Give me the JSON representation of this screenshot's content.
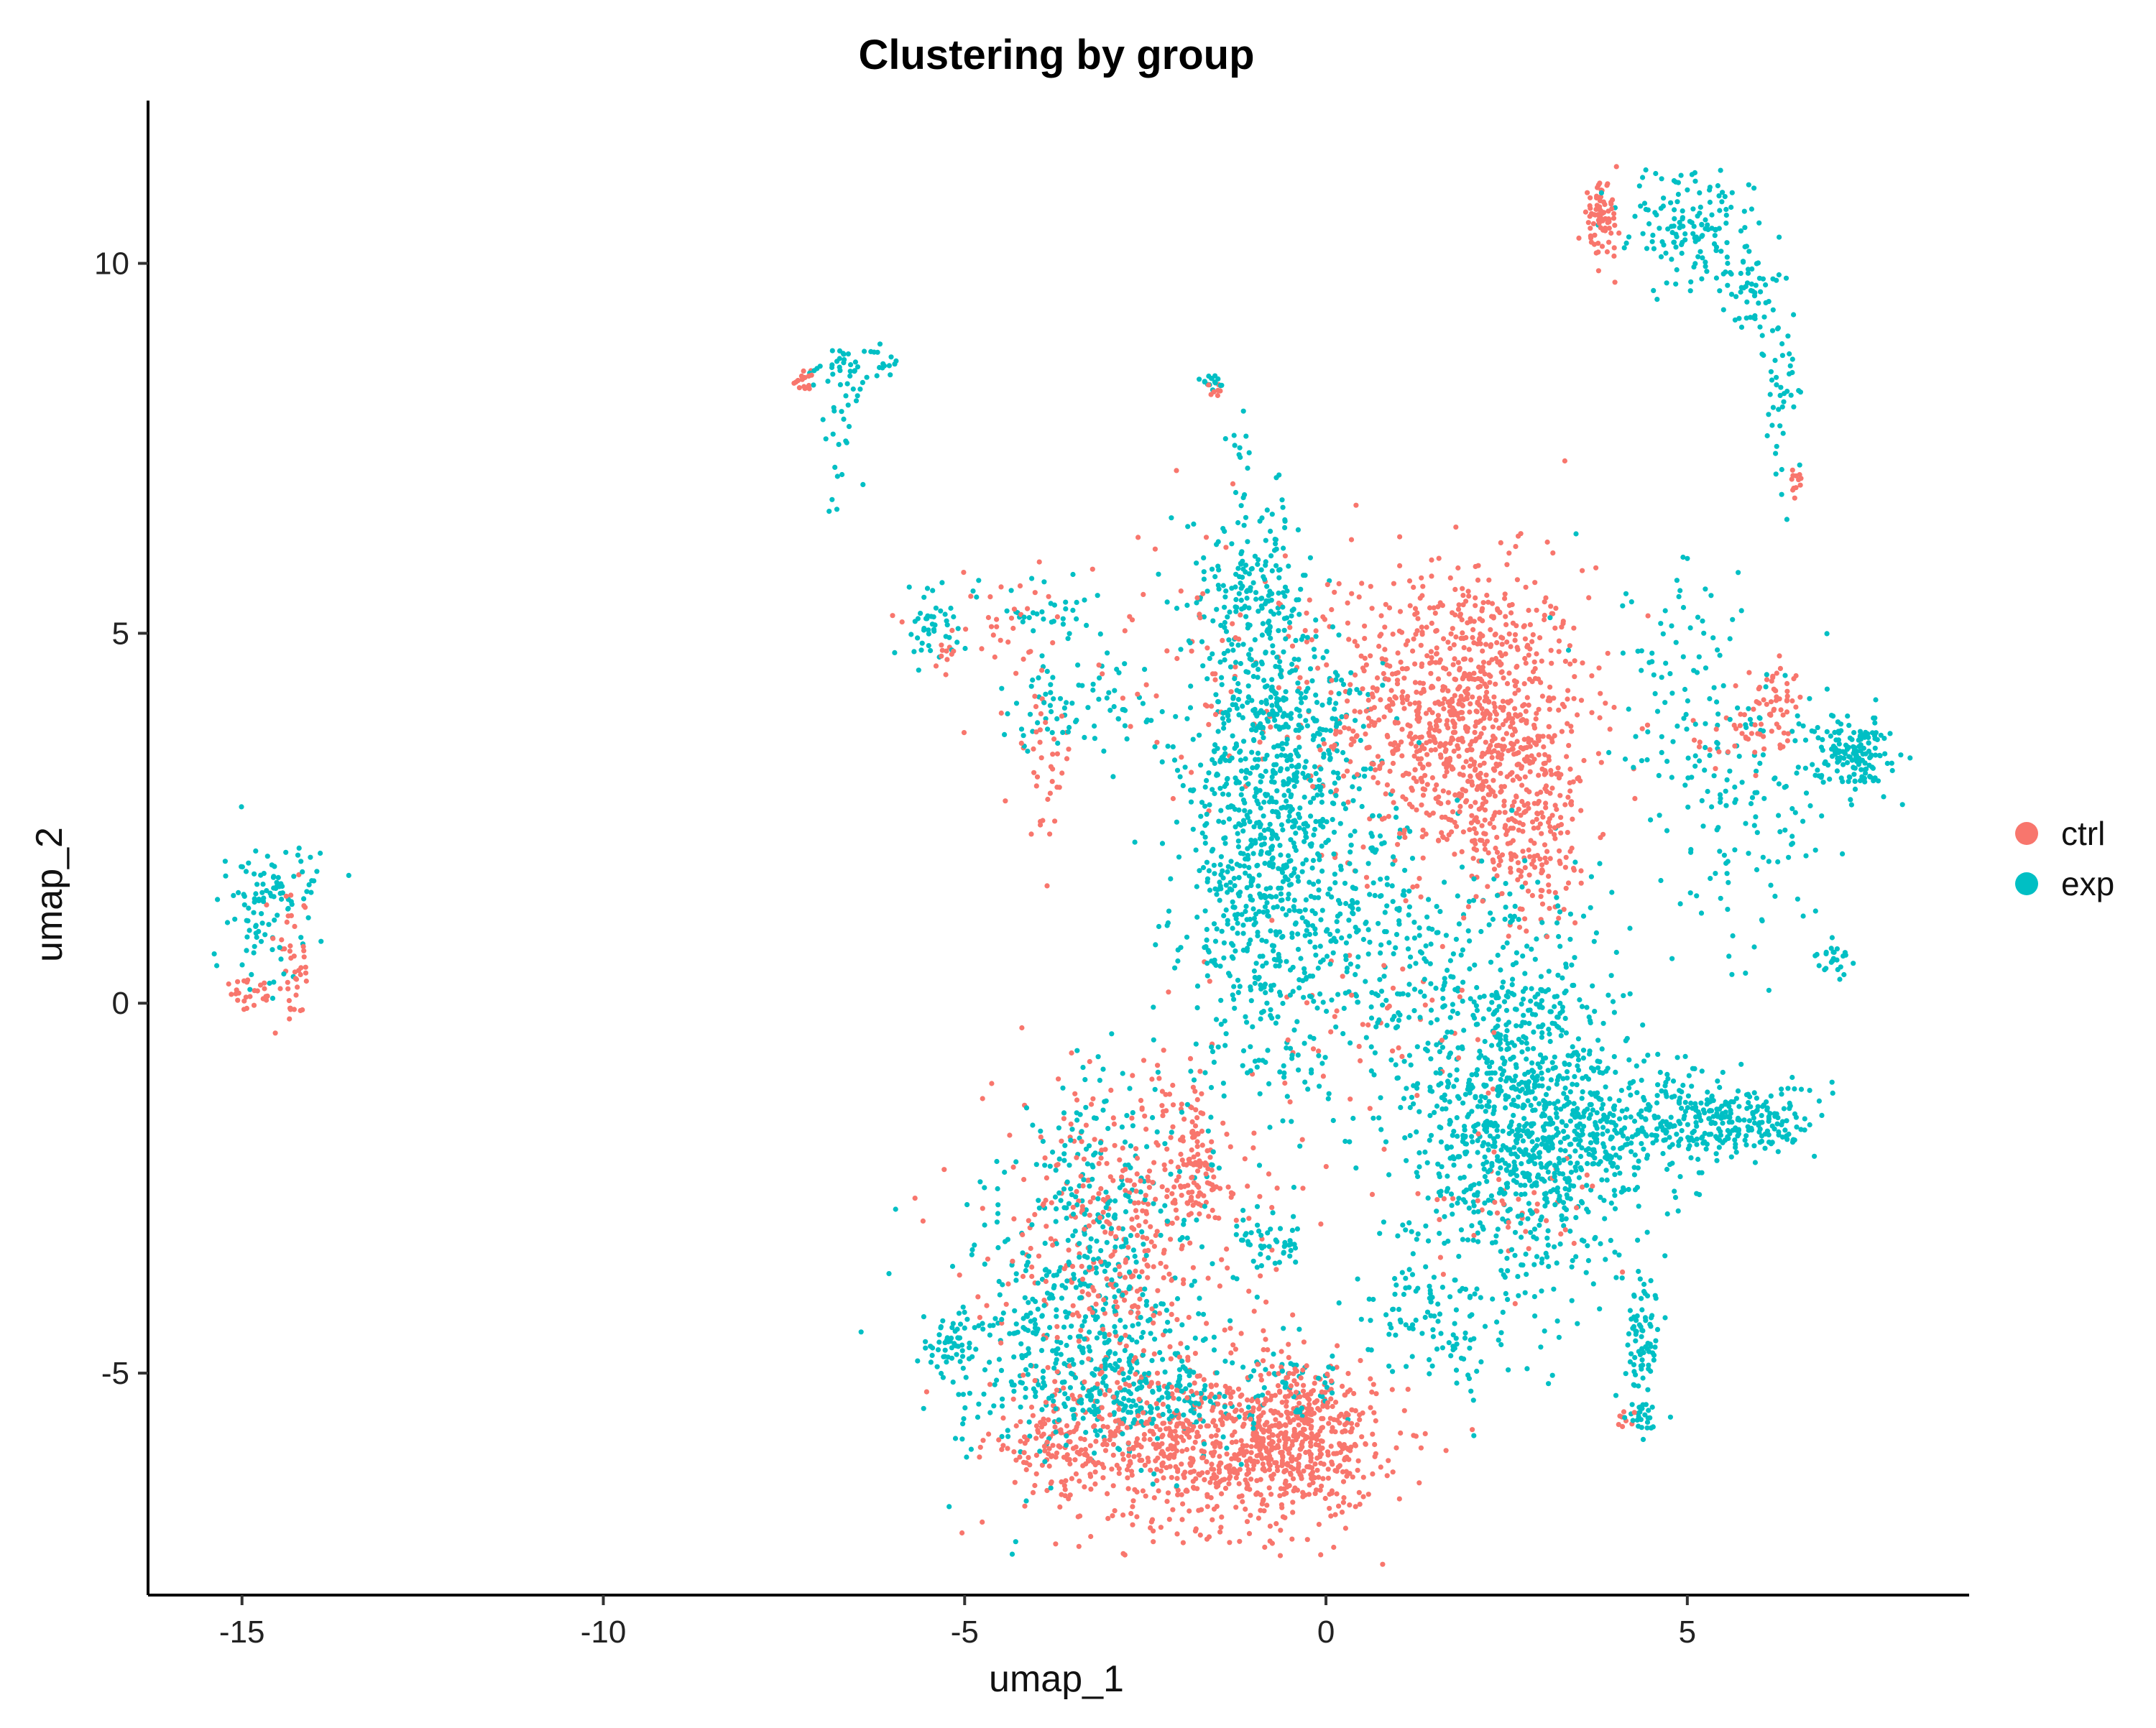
{
  "chart_data": {
    "type": "scatter",
    "title": "Clustering by group",
    "xlabel": "umap_1",
    "ylabel": "umap_2",
    "xlim": [
      -16.3,
      8.9
    ],
    "ylim": [
      -8.0,
      12.2
    ],
    "xticks": [
      -15,
      -10,
      -5,
      0,
      5
    ],
    "yticks": [
      -5,
      0,
      5,
      10
    ],
    "grid": false,
    "legend_position": "right",
    "series": [
      {
        "name": "ctrl",
        "color": "#F8766D",
        "regions": [
          {
            "cx": 1.9,
            "cy": 3.9,
            "sx": 0.85,
            "sy": 1.0,
            "n": 950
          },
          {
            "cx": 2.8,
            "cy": 2.4,
            "sx": 0.45,
            "sy": 0.7,
            "n": 220
          },
          {
            "cx": -1.5,
            "cy": -6.0,
            "sx": 1.1,
            "sy": 0.55,
            "n": 750
          },
          {
            "cx": -0.3,
            "cy": -5.8,
            "sx": 0.5,
            "sy": 0.5,
            "n": 300
          },
          {
            "cx": -2.8,
            "cy": -3.2,
            "sx": 0.9,
            "sy": 1.2,
            "n": 420
          },
          {
            "cx": -1.8,
            "cy": -2.2,
            "sx": 0.2,
            "sy": 0.5,
            "n": 90
          },
          {
            "cx": -3.8,
            "cy": -6.0,
            "sx": 0.45,
            "sy": 0.3,
            "n": 100
          },
          {
            "cx": 3.8,
            "cy": 10.6,
            "sx": 0.12,
            "sy": 0.25,
            "n": 80
          },
          {
            "cx": -14.3,
            "cy": 0.5,
            "sx": 0.12,
            "sy": 0.5,
            "n": 45
          },
          {
            "cx": -14.9,
            "cy": 0.1,
            "sx": 0.2,
            "sy": 0.1,
            "n": 25
          },
          {
            "cx": 6.2,
            "cy": 4.1,
            "sx": 0.2,
            "sy": 0.2,
            "n": 45
          },
          {
            "cx": 5.8,
            "cy": 3.6,
            "sx": 0.4,
            "sy": 0.2,
            "n": 35
          },
          {
            "cx": -7.2,
            "cy": 8.4,
            "sx": 0.08,
            "sy": 0.08,
            "n": 18
          },
          {
            "cx": -1.5,
            "cy": 8.3,
            "sx": 0.05,
            "sy": 0.05,
            "n": 8
          },
          {
            "cx": -3.9,
            "cy": 3.3,
            "sx": 0.2,
            "sy": 0.5,
            "n": 40
          },
          {
            "cx": -4.5,
            "cy": 5.2,
            "sx": 0.6,
            "sy": 0.3,
            "n": 30
          },
          {
            "cx": -5.3,
            "cy": 4.7,
            "sx": 0.1,
            "sy": 0.1,
            "n": 10
          },
          {
            "cx": -1.0,
            "cy": 4.5,
            "sx": 1.2,
            "sy": 0.9,
            "n": 110
          },
          {
            "cx": 0.6,
            "cy": -0.5,
            "sx": 1.0,
            "sy": 0.9,
            "n": 60
          },
          {
            "cx": 6.5,
            "cy": 7.0,
            "sx": 0.05,
            "sy": 0.15,
            "n": 12
          },
          {
            "cx": 2.8,
            "cy": -2.8,
            "sx": 0.5,
            "sy": 0.4,
            "n": 40
          },
          {
            "cx": 4.1,
            "cy": -5.6,
            "sx": 0.1,
            "sy": 0.05,
            "n": 8
          }
        ]
      },
      {
        "name": "exp",
        "color": "#00BFC4",
        "regions": [
          {
            "cx": -0.8,
            "cy": 1.8,
            "sx": 0.6,
            "sy": 1.5,
            "n": 800
          },
          {
            "cx": -1.0,
            "cy": 5.6,
            "sx": 0.45,
            "sy": 0.6,
            "n": 200
          },
          {
            "cx": -0.5,
            "cy": 3.7,
            "sx": 0.6,
            "sy": 0.6,
            "n": 200
          },
          {
            "cx": 2.6,
            "cy": -1.6,
            "sx": 0.8,
            "sy": 1.2,
            "n": 900
          },
          {
            "cx": 3.8,
            "cy": -1.7,
            "sx": 0.9,
            "sy": 0.5,
            "n": 280
          },
          {
            "cx": 5.6,
            "cy": -1.6,
            "sx": 0.6,
            "sy": 0.25,
            "n": 250
          },
          {
            "cx": 1.8,
            "cy": 0.5,
            "sx": 1.2,
            "sy": 0.8,
            "n": 220
          },
          {
            "cx": 1.5,
            "cy": -4.3,
            "sx": 0.6,
            "sy": 0.4,
            "n": 100
          },
          {
            "cx": 7.3,
            "cy": 3.4,
            "sx": 0.25,
            "sy": 0.25,
            "n": 160
          },
          {
            "cx": 5.8,
            "cy": 2.5,
            "sx": 0.7,
            "sy": 0.9,
            "n": 140
          },
          {
            "cx": -3.5,
            "cy": -4.5,
            "sx": 0.9,
            "sy": 0.9,
            "n": 450
          },
          {
            "cx": -2.5,
            "cy": -5.3,
            "sx": 0.7,
            "sy": 0.3,
            "n": 150
          },
          {
            "cx": -5.2,
            "cy": -4.6,
            "sx": 0.15,
            "sy": 0.15,
            "n": 40
          },
          {
            "cx": -0.5,
            "cy": -5.1,
            "sx": 0.5,
            "sy": 0.3,
            "n": 60
          },
          {
            "cx": -3.0,
            "cy": -2.6,
            "sx": 0.7,
            "sy": 0.9,
            "n": 180
          },
          {
            "cx": -0.8,
            "cy": -3.2,
            "sx": 0.25,
            "sy": 0.2,
            "n": 45
          },
          {
            "cx": 4.4,
            "cy": -4.6,
            "sx": 0.12,
            "sy": 0.45,
            "n": 80
          },
          {
            "cx": 4.4,
            "cy": -5.6,
            "sx": 0.12,
            "sy": 0.08,
            "n": 20
          },
          {
            "cx": 5.0,
            "cy": 10.5,
            "sx": 0.45,
            "sy": 0.4,
            "n": 140
          },
          {
            "cx": 5.9,
            "cy": 9.6,
            "sx": 0.25,
            "sy": 0.35,
            "n": 60
          },
          {
            "cx": 6.3,
            "cy": 8.3,
            "sx": 0.1,
            "sy": 0.6,
            "n": 40
          },
          {
            "cx": -6.6,
            "cy": 8.6,
            "sx": 0.35,
            "sy": 0.15,
            "n": 45
          },
          {
            "cx": -6.7,
            "cy": 7.6,
            "sx": 0.15,
            "sy": 0.5,
            "n": 25
          },
          {
            "cx": -1.6,
            "cy": 8.4,
            "sx": 0.08,
            "sy": 0.06,
            "n": 15
          },
          {
            "cx": -1.2,
            "cy": 7.5,
            "sx": 0.1,
            "sy": 0.35,
            "n": 12
          },
          {
            "cx": -5.5,
            "cy": 5.1,
            "sx": 0.25,
            "sy": 0.25,
            "n": 45
          },
          {
            "cx": -3.8,
            "cy": 5.3,
            "sx": 0.4,
            "sy": 0.2,
            "n": 35
          },
          {
            "cx": -3.8,
            "cy": 4.0,
            "sx": 0.4,
            "sy": 0.3,
            "n": 50
          },
          {
            "cx": -2.8,
            "cy": 3.9,
            "sx": 0.3,
            "sy": 0.4,
            "n": 30
          },
          {
            "cx": -14.6,
            "cy": 1.5,
            "sx": 0.35,
            "sy": 0.3,
            "n": 80
          },
          {
            "cx": -14.7,
            "cy": 0.6,
            "sx": 0.25,
            "sy": 0.4,
            "n": 30
          },
          {
            "cx": 7.0,
            "cy": 0.6,
            "sx": 0.2,
            "sy": 0.15,
            "n": 25
          },
          {
            "cx": 5.0,
            "cy": 4.4,
            "sx": 0.6,
            "sy": 0.8,
            "n": 70
          },
          {
            "cx": 0.8,
            "cy": 1.5,
            "sx": 0.3,
            "sy": 0.6,
            "n": 50
          }
        ]
      }
    ]
  }
}
